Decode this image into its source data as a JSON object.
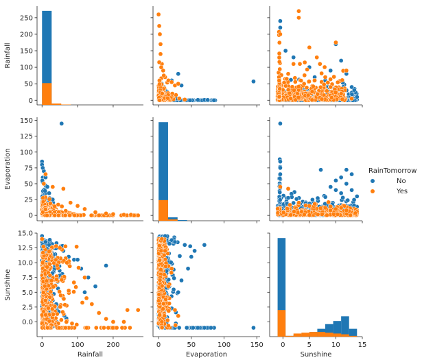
{
  "chart_data": {
    "type": "scatter",
    "kind": "pairplot",
    "variables": [
      "Rainfall",
      "Evaporation",
      "Sunshine"
    ],
    "hue": "RainTomorrow",
    "legend": {
      "title": "RainTomorrow",
      "placement": "right",
      "entries": [
        {
          "name": "No",
          "color": "#1f77b4"
        },
        {
          "name": "Yes",
          "color": "#ff7f0e"
        }
      ]
    },
    "axis_ranges": {
      "Rainfall": [
        -14,
        285
      ],
      "Evaporation": [
        -8.5,
        155
      ],
      "Sunshine": [
        -2.5,
        15
      ]
    },
    "axis_ticks": {
      "Rainfall": {
        "row": [
          0,
          50,
          100,
          150,
          200,
          250
        ],
        "col": [
          0,
          100,
          200
        ]
      },
      "Evaporation": {
        "row": [
          0,
          25,
          50,
          75,
          100,
          125,
          150
        ],
        "col": [
          0,
          50,
          100,
          150
        ]
      },
      "Sunshine": {
        "row": [
          0.0,
          2.5,
          5.0,
          7.5,
          10.0,
          12.5,
          15.0
        ],
        "col": [
          0,
          5,
          10,
          15
        ]
      }
    },
    "histograms": {
      "Rainfall": {
        "bins": [
          [
            0,
            27
          ],
          [
            27,
            54
          ],
          [
            54,
            81
          ],
          [
            81,
            108
          ],
          [
            108,
            135
          ],
          [
            135,
            162
          ],
          [
            162,
            189
          ],
          [
            189,
            216
          ],
          [
            216,
            243
          ],
          [
            243,
            270
          ]
        ],
        "series": [
          {
            "name": "No",
            "values": [
              268,
              1,
              0,
              0,
              0,
              0,
              0,
              0,
              0,
              0
            ]
          },
          {
            "name": "Yes",
            "values": [
              62,
              4,
              1,
              0,
              0,
              0,
              0,
              0,
              0,
              0
            ]
          }
        ]
      },
      "Evaporation": {
        "bins": [
          [
            0,
            14.5
          ],
          [
            14.5,
            29
          ],
          [
            29,
            43.5
          ],
          [
            43.5,
            58
          ],
          [
            58,
            72.5
          ],
          [
            72.5,
            87
          ],
          [
            87,
            101.5
          ],
          [
            101.5,
            116
          ],
          [
            116,
            130.5
          ],
          [
            130.5,
            145
          ]
        ],
        "series": [
          {
            "name": "No",
            "values": [
              143,
              5,
              1,
              0,
              0,
              0,
              0,
              0,
              0,
              0
            ]
          },
          {
            "name": "Yes",
            "values": [
              30,
              2,
              0,
              0,
              0,
              0,
              0,
              0,
              0,
              0
            ]
          }
        ]
      },
      "Sunshine": {
        "bins": [
          [
            -1,
            0.5
          ],
          [
            0.5,
            2
          ],
          [
            2,
            3.5
          ],
          [
            3.5,
            5
          ],
          [
            5,
            6.5
          ],
          [
            6.5,
            8
          ],
          [
            8,
            9.5
          ],
          [
            9.5,
            11
          ],
          [
            11,
            12.5
          ],
          [
            12.5,
            14
          ]
        ],
        "series": [
          {
            "name": "No",
            "values": [
              6.3,
              0.05,
              0.1,
              0.2,
              0.3,
              0.5,
              0.8,
              1.0,
              1.3,
              0.5
            ]
          },
          {
            "name": "Yes",
            "values": [
              1.7,
              0.05,
              0.2,
              0.25,
              0.3,
              0.3,
              0.25,
              0.2,
              0.15,
              0.05
            ]
          }
        ]
      }
    },
    "scatter_samples": {
      "Rainfall_vs_Evaporation": {
        "No": [
          [
            145,
            57
          ],
          [
            27,
            5
          ],
          [
            40,
            2
          ],
          [
            60,
            1
          ],
          [
            70,
            1
          ],
          [
            75,
            1
          ],
          [
            10,
            30
          ],
          [
            5,
            50
          ],
          [
            15,
            20
          ],
          [
            30,
            80
          ],
          [
            20,
            60
          ],
          [
            35,
            45
          ],
          [
            2,
            15
          ],
          [
            8,
            40
          ],
          [
            12,
            25
          ]
        ],
        "Yes": [
          [
            0,
            260
          ],
          [
            1,
            225
          ],
          [
            2,
            200
          ],
          [
            3,
            170
          ],
          [
            5,
            110
          ],
          [
            7,
            90
          ],
          [
            10,
            70
          ],
          [
            15,
            60
          ],
          [
            20,
            55
          ],
          [
            25,
            45
          ],
          [
            30,
            50
          ],
          [
            40,
            2
          ],
          [
            3,
            140
          ],
          [
            1,
            115
          ],
          [
            8,
            75
          ],
          [
            4,
            100
          ]
        ]
      },
      "Rainfall_vs_Sunshine": {
        "No": [
          [
            -0.5,
            240
          ],
          [
            -0.5,
            220
          ],
          [
            0.5,
            150
          ],
          [
            2,
            130
          ],
          [
            5,
            100
          ],
          [
            7,
            110
          ],
          [
            10,
            170
          ],
          [
            11,
            120
          ],
          [
            12,
            80
          ],
          [
            13,
            40
          ],
          [
            8,
            60
          ],
          [
            9,
            90
          ],
          [
            6,
            70
          ],
          [
            14,
            10
          ],
          [
            4,
            30
          ]
        ],
        "Yes": [
          [
            -0.5,
            200
          ],
          [
            3,
            270
          ],
          [
            3,
            250
          ],
          [
            5,
            160
          ],
          [
            7,
            110
          ],
          [
            10,
            175
          ],
          [
            12,
            90
          ],
          [
            2,
            110
          ],
          [
            1,
            80
          ],
          [
            6,
            60
          ],
          [
            8,
            70
          ],
          [
            9,
            40
          ],
          [
            4,
            50
          ],
          [
            11,
            20
          ],
          [
            13,
            5
          ]
        ]
      },
      "Evaporation_vs_Rainfall": {
        "No": [
          [
            55,
            145
          ],
          [
            0,
            85
          ],
          [
            0,
            80
          ],
          [
            5,
            70
          ],
          [
            10,
            60
          ],
          [
            2,
            75
          ],
          [
            20,
            35
          ],
          [
            30,
            25
          ],
          [
            15,
            45
          ],
          [
            1,
            55
          ]
        ],
        "Yes": [
          [
            30,
            45
          ],
          [
            60,
            42
          ],
          [
            80,
            20
          ],
          [
            100,
            15
          ],
          [
            120,
            10
          ],
          [
            150,
            5
          ],
          [
            180,
            3
          ],
          [
            200,
            2
          ],
          [
            230,
            1
          ],
          [
            250,
            1
          ],
          [
            270,
            0
          ],
          [
            10,
            65
          ],
          [
            5,
            50
          ]
        ]
      },
      "Evaporation_vs_Sunshine": {
        "No": [
          [
            -0.5,
            145
          ],
          [
            -0.5,
            85
          ],
          [
            -0.5,
            75
          ],
          [
            -0.5,
            65
          ],
          [
            12,
            72
          ],
          [
            13,
            65
          ],
          [
            11,
            60
          ],
          [
            10,
            55
          ],
          [
            9,
            45
          ],
          [
            12,
            50
          ],
          [
            13,
            40
          ],
          [
            11,
            35
          ],
          [
            14,
            30
          ],
          [
            10,
            40
          ]
        ],
        "Yes": [
          [
            -0.5,
            45
          ],
          [
            1,
            42
          ],
          [
            5,
            15
          ],
          [
            8,
            12
          ],
          [
            10,
            10
          ],
          [
            12,
            8
          ],
          [
            3,
            20
          ],
          [
            6,
            18
          ],
          [
            9,
            14
          ],
          [
            11,
            12
          ]
        ]
      },
      "Sunshine_vs_Rainfall": {
        "No": [
          [
            0,
            14.5
          ],
          [
            10,
            13.5
          ],
          [
            20,
            13
          ],
          [
            60,
            12
          ],
          [
            75,
            11
          ],
          [
            90,
            10.5
          ],
          [
            110,
            9
          ],
          [
            100,
            10.5
          ],
          [
            130,
            7.5
          ],
          [
            180,
            9.5
          ],
          [
            150,
            6
          ],
          [
            120,
            5
          ],
          [
            60,
            4
          ],
          [
            40,
            3
          ]
        ],
        "Yes": [
          [
            0,
            14
          ],
          [
            50,
            12.5
          ],
          [
            70,
            10
          ],
          [
            120,
            7.5
          ],
          [
            125,
            4
          ],
          [
            140,
            3
          ],
          [
            160,
            1.5
          ],
          [
            180,
            0.5
          ],
          [
            200,
            0
          ],
          [
            230,
            0
          ],
          [
            240,
            2
          ],
          [
            270,
            2
          ]
        ]
      },
      "Sunshine_vs_Evaporation": {
        "No": [
          [
            2,
            14
          ],
          [
            10,
            14.5
          ],
          [
            25,
            13.5
          ],
          [
            40,
            13
          ],
          [
            55,
            12
          ],
          [
            70,
            13
          ],
          [
            50,
            11
          ],
          [
            45,
            9
          ],
          [
            35,
            7
          ],
          [
            30,
            5
          ],
          [
            145,
            -1
          ],
          [
            80,
            -1
          ],
          [
            60,
            -1
          ],
          [
            70,
            -1
          ]
        ],
        "Yes": [
          [
            5,
            14
          ],
          [
            10,
            12
          ],
          [
            20,
            9
          ],
          [
            15,
            6
          ],
          [
            30,
            1
          ],
          [
            25,
            2
          ],
          [
            5,
            0
          ]
        ]
      }
    }
  }
}
